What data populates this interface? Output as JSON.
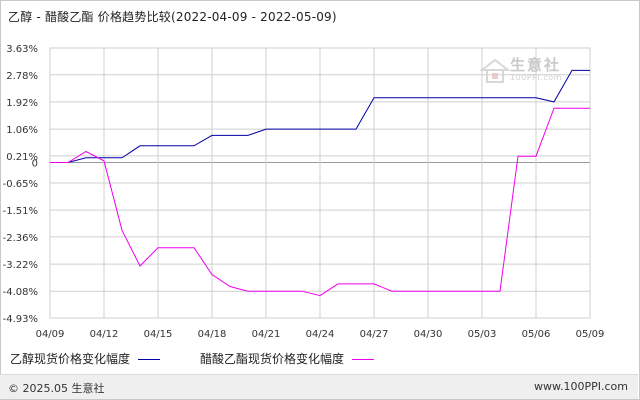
{
  "title": "乙醇 - 醋酸乙酯 价格趋势比较(2022-04-09 - 2022-05-09)",
  "watermark": {
    "name": "生意社",
    "url": "100PPI.com"
  },
  "footer": {
    "left": "© 2025.05 生意社",
    "right": "www.100PPI.com"
  },
  "colors": {
    "series1": "#0000aa",
    "series2": "#ee00ee",
    "grid": "#cfcfcf",
    "zero": "#9a9a9a"
  },
  "chart_data": {
    "type": "line",
    "title": "乙醇 - 醋酸乙酯 价格趋势比较(2022-04-09 - 2022-05-09)",
    "xlabel": "",
    "ylabel": "",
    "ylim": [
      -4.93,
      3.63
    ],
    "y_ticks": [
      "3.63%",
      "2.78%",
      "1.92%",
      "1.06%",
      "0.21%",
      "0",
      "-0.65%",
      "-1.51%",
      "-2.36%",
      "-3.22%",
      "-4.08%",
      "-4.93%"
    ],
    "y_tick_values": [
      3.63,
      2.78,
      1.92,
      1.06,
      0.21,
      0,
      -0.65,
      -1.51,
      -2.36,
      -3.22,
      -4.08,
      -4.93
    ],
    "x_ticks": [
      "04/09",
      "04/12",
      "04/15",
      "04/18",
      "04/21",
      "04/24",
      "04/27",
      "04/30",
      "05/03",
      "05/06",
      "05/09"
    ],
    "x_range_days": [
      0,
      30
    ],
    "grid": true,
    "legend_position": "bottom",
    "series": [
      {
        "name": "乙醇现货价格变化幅度",
        "points": [
          [
            0,
            0
          ],
          [
            1,
            0
          ],
          [
            2,
            0.15
          ],
          [
            3,
            0.15
          ],
          [
            4,
            0.15
          ],
          [
            5,
            0.53
          ],
          [
            6,
            0.53
          ],
          [
            7,
            0.53
          ],
          [
            8,
            0.53
          ],
          [
            9,
            0.86
          ],
          [
            10,
            0.86
          ],
          [
            11,
            0.86
          ],
          [
            12,
            1.06
          ],
          [
            13,
            1.06
          ],
          [
            14,
            1.06
          ],
          [
            15,
            1.06
          ],
          [
            16,
            1.06
          ],
          [
            17,
            1.06
          ],
          [
            18,
            2.05
          ],
          [
            19,
            2.05
          ],
          [
            20,
            2.05
          ],
          [
            21,
            2.05
          ],
          [
            22,
            2.05
          ],
          [
            23,
            2.05
          ],
          [
            24,
            2.05
          ],
          [
            25,
            2.05
          ],
          [
            26,
            2.05
          ],
          [
            27,
            2.05
          ],
          [
            28,
            1.92
          ],
          [
            29,
            2.92
          ],
          [
            30,
            2.92
          ]
        ]
      },
      {
        "name": "醋酸乙酯现货价格变化幅度",
        "points": [
          [
            0,
            0
          ],
          [
            1,
            0
          ],
          [
            2,
            0.35
          ],
          [
            3,
            0.05
          ],
          [
            4,
            -2.15
          ],
          [
            5,
            -3.28
          ],
          [
            6,
            -2.7
          ],
          [
            7,
            -2.7
          ],
          [
            8,
            -2.7
          ],
          [
            9,
            -3.55
          ],
          [
            10,
            -3.93
          ],
          [
            11,
            -4.08
          ],
          [
            12,
            -4.08
          ],
          [
            13,
            -4.08
          ],
          [
            14,
            -4.08
          ],
          [
            15,
            -4.22
          ],
          [
            16,
            -3.85
          ],
          [
            17,
            -3.85
          ],
          [
            18,
            -3.85
          ],
          [
            19,
            -4.08
          ],
          [
            20,
            -4.08
          ],
          [
            21,
            -4.08
          ],
          [
            22,
            -4.08
          ],
          [
            23,
            -4.08
          ],
          [
            24,
            -4.08
          ],
          [
            25,
            -4.08
          ],
          [
            26,
            0.2
          ],
          [
            27,
            0.2
          ],
          [
            28,
            1.72
          ],
          [
            29,
            1.72
          ],
          [
            30,
            1.72
          ]
        ]
      }
    ]
  }
}
